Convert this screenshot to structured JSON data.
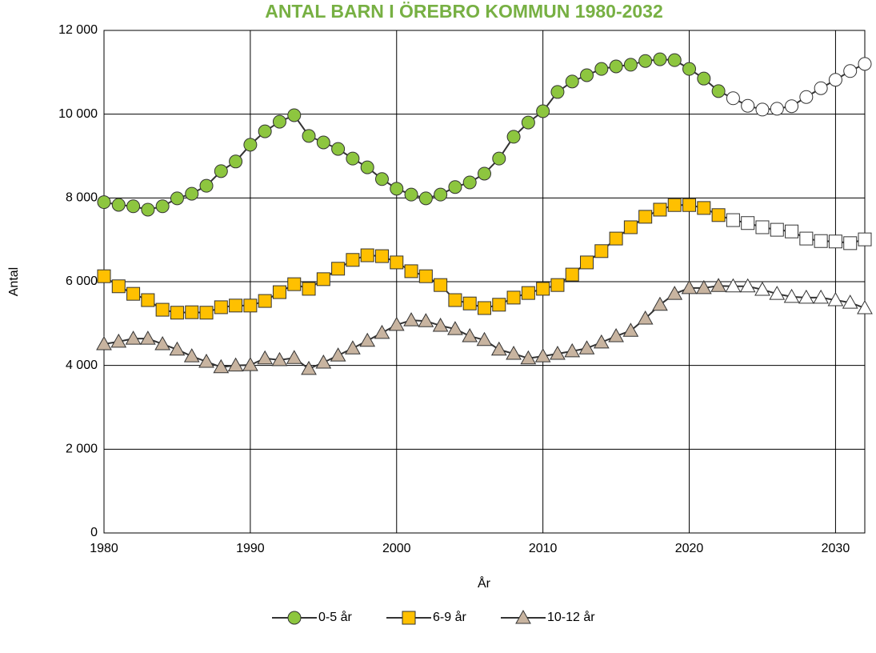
{
  "chart_data": {
    "type": "line",
    "title": "ANTAL BARN I ÖREBRO KOMMUN 1980-2032",
    "title_color": "#77b043",
    "x_label": "År",
    "y_label": "Antal",
    "x": [
      1980,
      1981,
      1982,
      1983,
      1984,
      1985,
      1986,
      1987,
      1988,
      1989,
      1990,
      1991,
      1992,
      1993,
      1994,
      1995,
      1996,
      1997,
      1998,
      1999,
      2000,
      2001,
      2002,
      2003,
      2004,
      2005,
      2006,
      2007,
      2008,
      2009,
      2010,
      2011,
      2012,
      2013,
      2014,
      2015,
      2016,
      2017,
      2018,
      2019,
      2020,
      2021,
      2022,
      2023,
      2024,
      2025,
      2026,
      2027,
      2028,
      2029,
      2030,
      2031,
      2032
    ],
    "forecast_from": 2023,
    "forecast_color": "#ffffff",
    "line_color": "#333333",
    "series": [
      {
        "name": "0-5 år",
        "color": "#8dc63f",
        "marker": "circle",
        "values": [
          7900,
          7835,
          7800,
          7720,
          7800,
          7990,
          8100,
          8290,
          8640,
          8870,
          9270,
          9590,
          9820,
          9975,
          9480,
          9325,
          9170,
          8940,
          8730,
          8450,
          8220,
          8080,
          7990,
          8080,
          8260,
          8370,
          8580,
          8940,
          9460,
          9800,
          10070,
          10530,
          10780,
          10930,
          11080,
          11140,
          11180,
          11270,
          11310,
          11290,
          11080,
          10850,
          10550,
          10380,
          10200,
          10110,
          10130,
          10190,
          10410,
          10620,
          10820,
          11030,
          11200
        ]
      },
      {
        "name": "6-9 år",
        "color": "#ffc000",
        "marker": "square",
        "values": [
          6130,
          5890,
          5710,
          5560,
          5330,
          5260,
          5270,
          5260,
          5390,
          5430,
          5430,
          5540,
          5750,
          5940,
          5830,
          6060,
          6310,
          6520,
          6630,
          6610,
          6460,
          6250,
          6130,
          5920,
          5560,
          5480,
          5370,
          5450,
          5620,
          5730,
          5830,
          5920,
          6170,
          6460,
          6730,
          7030,
          7300,
          7550,
          7720,
          7830,
          7830,
          7760,
          7590,
          7470,
          7400,
          7300,
          7240,
          7200,
          7030,
          6970,
          6960,
          6920,
          7010
        ]
      },
      {
        "name": "10-12 år",
        "color": "#c8b4a0",
        "marker": "triangle",
        "values": [
          4510,
          4570,
          4640,
          4640,
          4510,
          4380,
          4220,
          4090,
          3960,
          4000,
          4010,
          4170,
          4130,
          4180,
          3920,
          4070,
          4240,
          4410,
          4590,
          4780,
          4970,
          5080,
          5060,
          4950,
          4870,
          4700,
          4610,
          4380,
          4280,
          4170,
          4220,
          4280,
          4340,
          4410,
          4550,
          4700,
          4830,
          5120,
          5450,
          5710,
          5850,
          5850,
          5900,
          5890,
          5890,
          5810,
          5710,
          5640,
          5620,
          5620,
          5560,
          5500,
          5370
        ]
      }
    ],
    "xlim": [
      1980,
      2032
    ],
    "xticks": [
      1980,
      1990,
      2000,
      2010,
      2020,
      2030
    ],
    "ylim": [
      0,
      12000
    ],
    "yticks": [
      0,
      {
        "value": 2000,
        "label": "2 000"
      },
      {
        "value": 4000,
        "label": "4 000"
      },
      {
        "value": 6000,
        "label": "6 000"
      },
      {
        "value": 8000,
        "label": "8 000"
      },
      {
        "value": 10000,
        "label": "10 000"
      },
      {
        "value": 12000,
        "label": "12 000"
      }
    ],
    "grid": true,
    "legend": "bottom"
  }
}
